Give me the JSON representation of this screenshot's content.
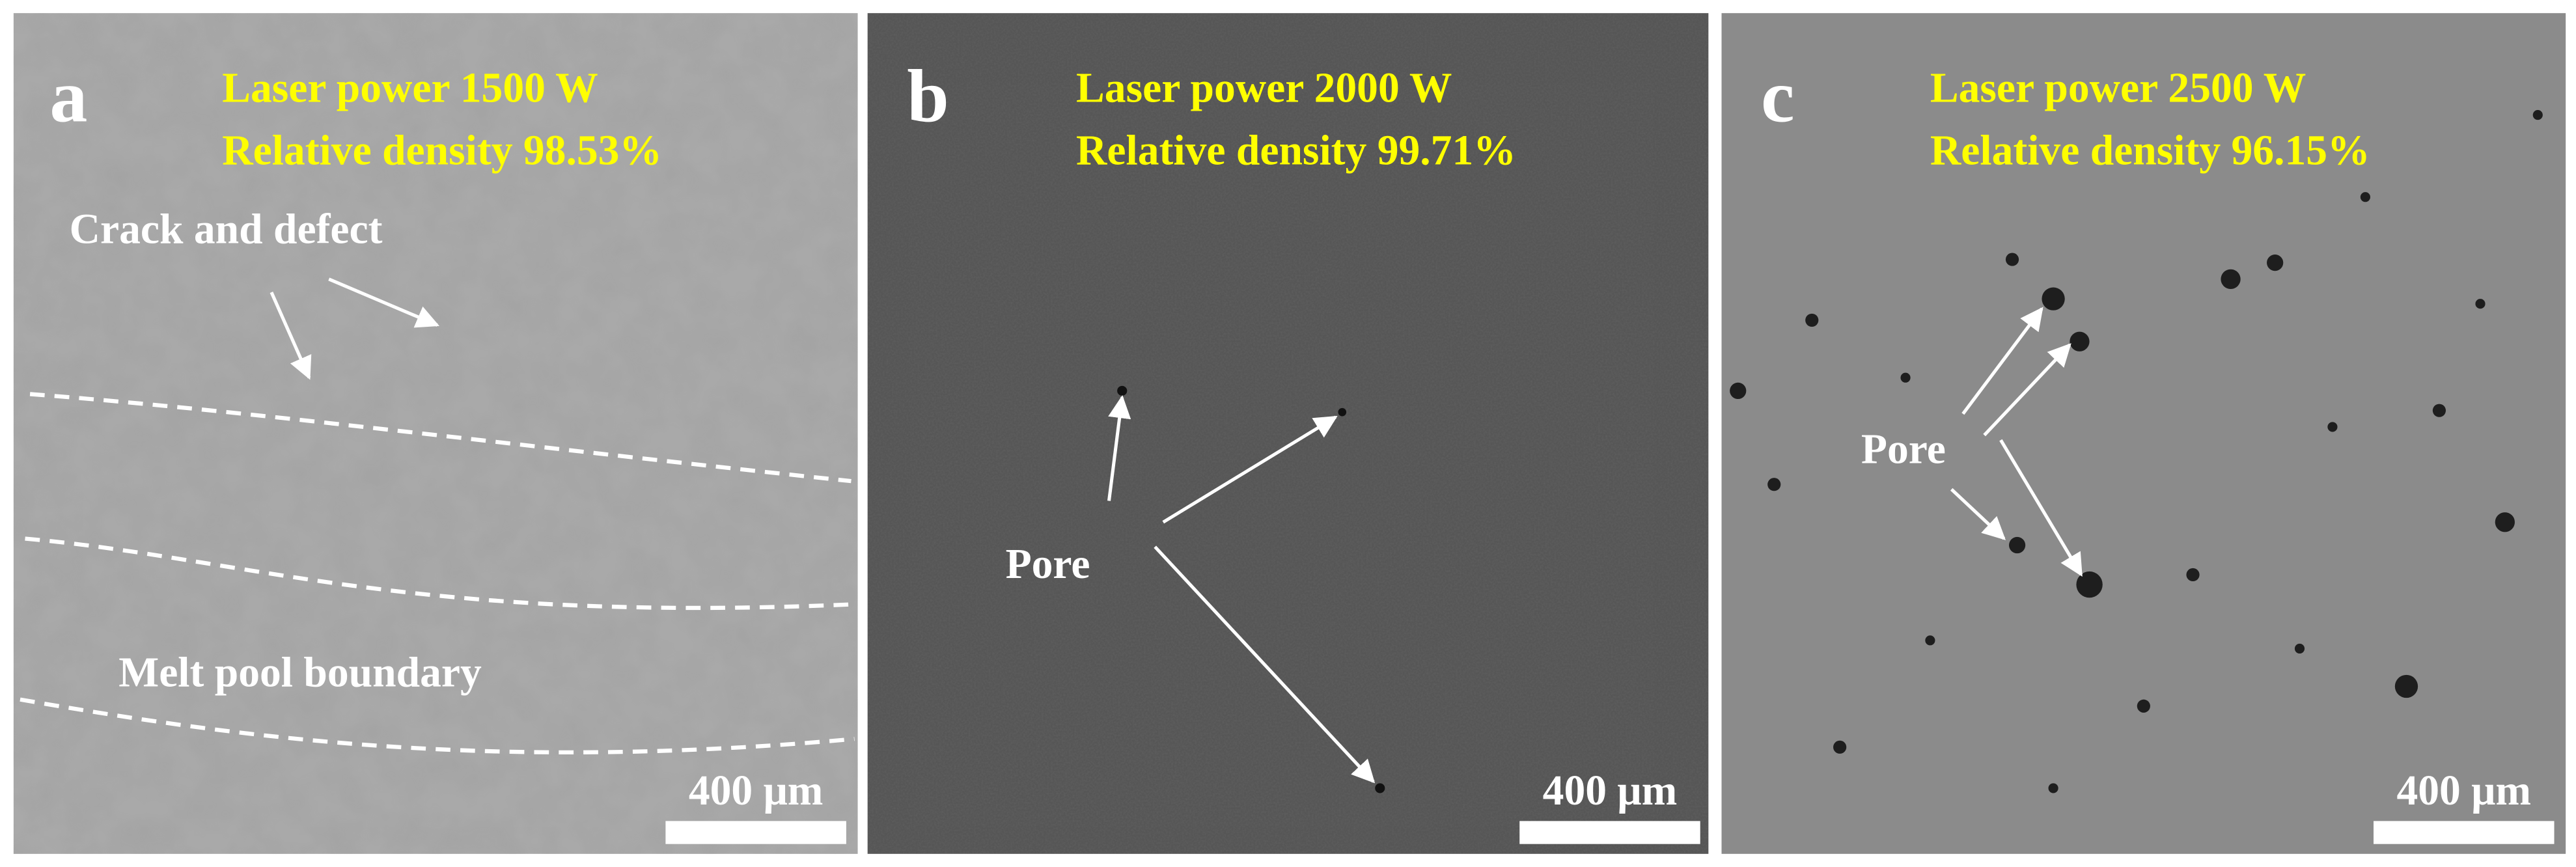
{
  "panels": [
    {
      "label": "a",
      "power": "Laser power 1500 W",
      "density": "Relative density 98.53%",
      "annotations": [
        "Crack and defect",
        "Melt pool boundary"
      ],
      "scale_bar": "400 μm"
    },
    {
      "label": "b",
      "power": "Laser power 2000 W",
      "density": "Relative density 99.71%",
      "annotations": [
        "Pore"
      ],
      "scale_bar": "400 μm"
    },
    {
      "label": "c",
      "power": "Laser power 2500 W",
      "density": "Relative density 96.15%",
      "annotations": [
        "Pore"
      ],
      "scale_bar": "400 μm"
    }
  ]
}
